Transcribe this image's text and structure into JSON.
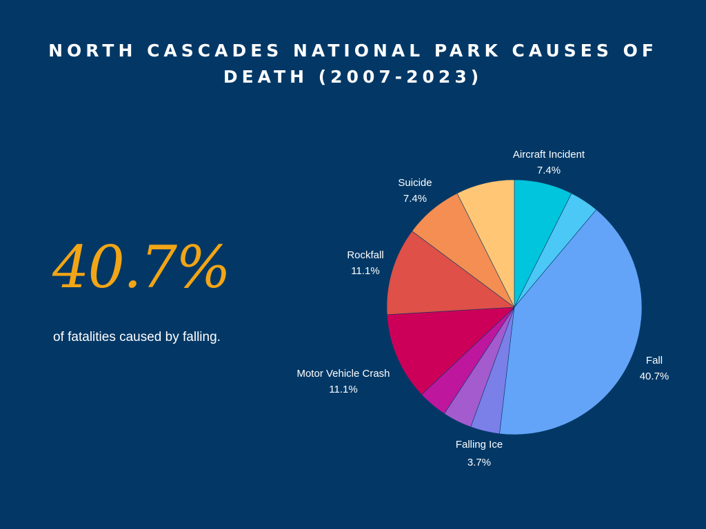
{
  "header": {
    "title": "NORTH CASCADES NATIONAL PARK CAUSES OF DEATH (2007-2023)"
  },
  "highlight": {
    "value": "40.7%",
    "caption": "of fatalities caused by falling."
  },
  "colors": {
    "background": "#033866",
    "highlight": "#F2A516"
  },
  "chart_data": {
    "type": "pie",
    "title": "NORTH CASCADES NATIONAL PARK CAUSES OF DEATH (2007-2023)",
    "slices": [
      {
        "label": "Aircraft Incident",
        "value": 7.4,
        "pct_label": "7.4%",
        "color": "#00C5DC",
        "show_label": true
      },
      {
        "label": "",
        "value": 3.7,
        "pct_label": "",
        "color": "#4BC8F5",
        "show_label": false
      },
      {
        "label": "Fall",
        "value": 40.7,
        "pct_label": "40.7%",
        "color": "#63A4F8",
        "show_label": true
      },
      {
        "label": "Falling Ice",
        "value": 3.7,
        "pct_label": "3.7%",
        "color": "#7B7FE8",
        "show_label": true
      },
      {
        "label": "",
        "value": 3.7,
        "pct_label": "",
        "color": "#A45BCE",
        "show_label": false
      },
      {
        "label": "",
        "value": 3.7,
        "pct_label": "",
        "color": "#BE169D",
        "show_label": false
      },
      {
        "label": "Motor Vehicle Crash",
        "value": 11.1,
        "pct_label": "11.1%",
        "color": "#CC0058",
        "show_label": true
      },
      {
        "label": "Rockfall",
        "value": 11.1,
        "pct_label": "11.1%",
        "color": "#DE5048",
        "show_label": true
      },
      {
        "label": "Suicide",
        "value": 7.4,
        "pct_label": "7.4%",
        "color": "#F58E52",
        "show_label": true
      },
      {
        "label": "",
        "value": 7.4,
        "pct_label": "",
        "color": "#FFC676",
        "show_label": false
      }
    ]
  }
}
